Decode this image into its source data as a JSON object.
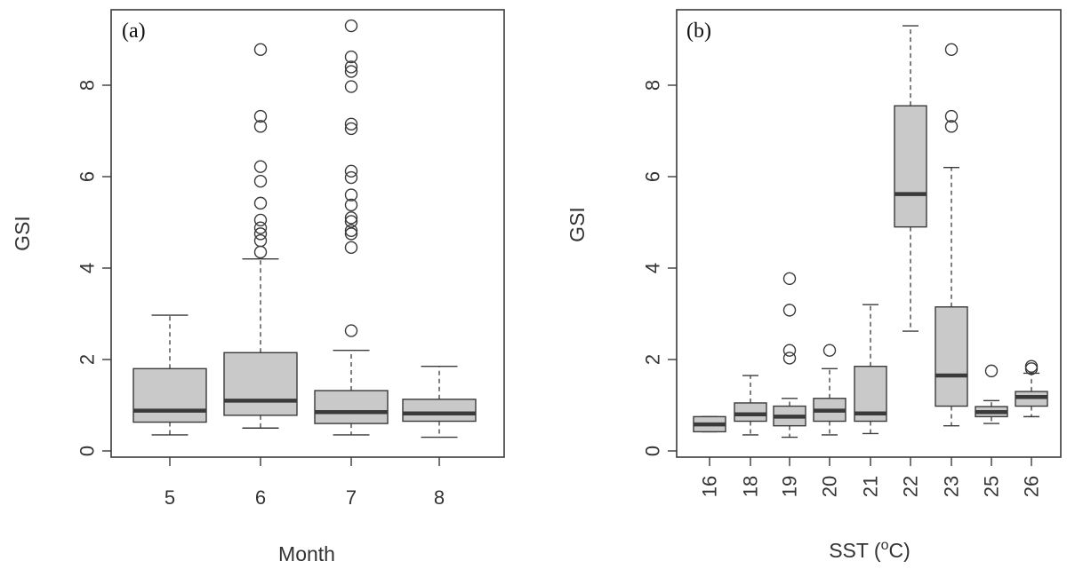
{
  "colors": {
    "box_fill": "#c9c9c9",
    "stroke": "#3a3a3a",
    "background": "#ffffff"
  },
  "chart_data": [
    {
      "type": "box",
      "panel_label": "(a)",
      "xlabel": "Month",
      "ylabel": "GSI",
      "ylim": [
        0,
        9.6
      ],
      "yticks": [
        0,
        2,
        4,
        6,
        8
      ],
      "categories": [
        "5",
        "6",
        "7",
        "8"
      ],
      "boxes": [
        {
          "category": "5",
          "whisker_low": 0.35,
          "q1": 0.63,
          "median": 0.88,
          "q3": 1.8,
          "whisker_high": 2.97,
          "outliers": []
        },
        {
          "category": "6",
          "whisker_low": 0.5,
          "q1": 0.78,
          "median": 1.1,
          "q3": 2.15,
          "whisker_high": 4.2,
          "outliers": [
            4.35,
            4.6,
            4.75,
            4.88,
            5.05,
            5.42,
            5.9,
            6.22,
            7.1,
            7.32,
            8.78
          ]
        },
        {
          "category": "7",
          "whisker_low": 0.35,
          "q1": 0.6,
          "median": 0.85,
          "q3": 1.32,
          "whisker_high": 2.2,
          "outliers": [
            2.63,
            4.45,
            4.75,
            4.82,
            5.02,
            5.1,
            5.38,
            5.6,
            5.98,
            6.12,
            7.05,
            7.15,
            7.97,
            8.3,
            8.4,
            8.62,
            9.3
          ]
        },
        {
          "category": "8",
          "whisker_low": 0.3,
          "q1": 0.65,
          "median": 0.82,
          "q3": 1.13,
          "whisker_high": 1.85,
          "outliers": []
        }
      ]
    },
    {
      "type": "box",
      "panel_label": "(b)",
      "xlabel": "SST (oC)",
      "ylabel": "GSI",
      "ylim": [
        0,
        9.6
      ],
      "yticks": [
        0,
        2,
        4,
        6,
        8
      ],
      "categories": [
        "16",
        "18",
        "19",
        "20",
        "21",
        "22",
        "23",
        "25",
        "26"
      ],
      "boxes": [
        {
          "category": "16",
          "whisker_low": 0.42,
          "q1": 0.42,
          "median": 0.58,
          "q3": 0.75,
          "whisker_high": 0.75,
          "outliers": []
        },
        {
          "category": "18",
          "whisker_low": 0.35,
          "q1": 0.65,
          "median": 0.8,
          "q3": 1.05,
          "whisker_high": 1.65,
          "outliers": []
        },
        {
          "category": "19",
          "whisker_low": 0.3,
          "q1": 0.55,
          "median": 0.75,
          "q3": 0.98,
          "whisker_high": 1.15,
          "outliers": [
            2.03,
            2.2,
            3.08,
            3.77
          ]
        },
        {
          "category": "20",
          "whisker_low": 0.35,
          "q1": 0.65,
          "median": 0.88,
          "q3": 1.15,
          "whisker_high": 1.8,
          "outliers": [
            2.2
          ]
        },
        {
          "category": "21",
          "whisker_low": 0.38,
          "q1": 0.65,
          "median": 0.82,
          "q3": 1.85,
          "whisker_high": 3.2,
          "outliers": []
        },
        {
          "category": "22",
          "whisker_low": 2.62,
          "q1": 4.9,
          "median": 5.62,
          "q3": 7.55,
          "whisker_high": 9.3,
          "outliers": []
        },
        {
          "category": "23",
          "whisker_low": 0.55,
          "q1": 0.98,
          "median": 1.65,
          "q3": 3.15,
          "whisker_high": 6.2,
          "outliers": [
            7.1,
            7.32,
            8.78
          ]
        },
        {
          "category": "25",
          "whisker_low": 0.6,
          "q1": 0.75,
          "median": 0.85,
          "q3": 0.97,
          "whisker_high": 1.1,
          "outliers": [
            1.75
          ]
        },
        {
          "category": "26",
          "whisker_low": 0.75,
          "q1": 0.98,
          "median": 1.18,
          "q3": 1.3,
          "whisker_high": 1.7,
          "outliers": [
            1.8,
            1.85
          ]
        }
      ]
    }
  ]
}
